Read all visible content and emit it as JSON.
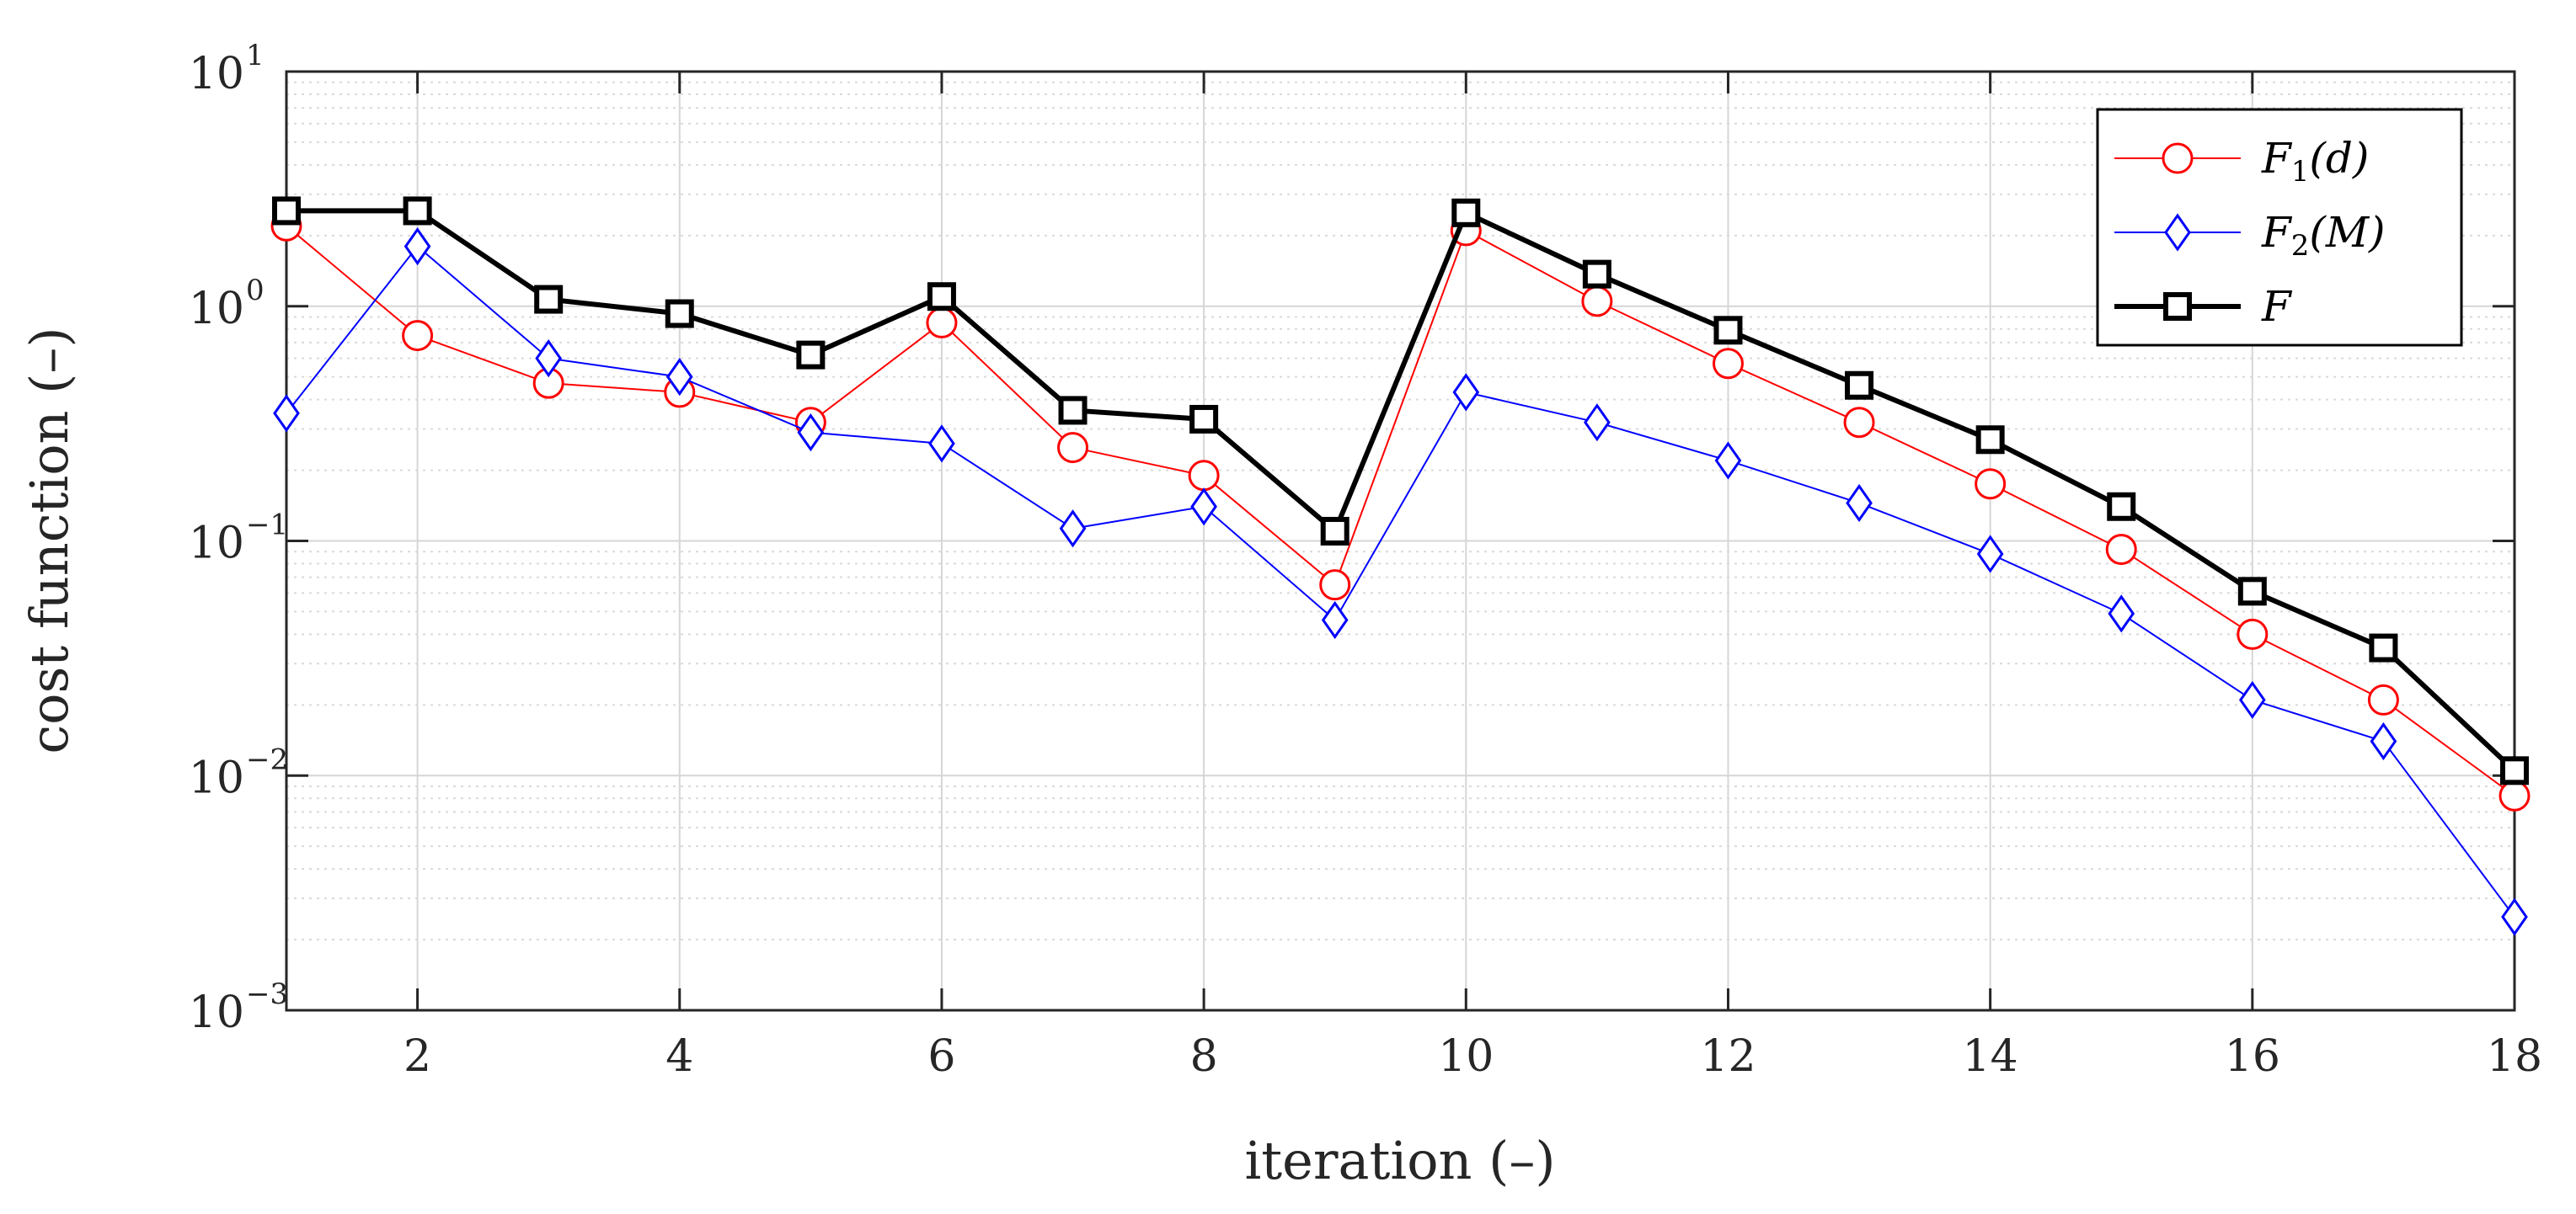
{
  "chart_data": {
    "type": "line",
    "title": "",
    "xlabel": "iteration (–)",
    "ylabel": "cost function (–)",
    "xlim": [
      1,
      18
    ],
    "ylim": [
      0.001,
      10
    ],
    "yscale": "log",
    "grid": true,
    "legend_position": "top-right",
    "x_ticks": [
      2,
      4,
      6,
      8,
      10,
      12,
      14,
      16,
      18
    ],
    "y_ticks": [
      {
        "base": "10",
        "exp": "1",
        "value": 10
      },
      {
        "base": "10",
        "exp": "0",
        "value": 1
      },
      {
        "base": "10",
        "exp": "−1",
        "value": 0.1
      },
      {
        "base": "10",
        "exp": "−2",
        "value": 0.01
      },
      {
        "base": "10",
        "exp": "−3",
        "value": 0.001
      }
    ],
    "x": [
      1,
      2,
      3,
      4,
      5,
      6,
      7,
      8,
      9,
      10,
      11,
      12,
      13,
      14,
      15,
      16,
      17,
      18
    ],
    "series": [
      {
        "name": "F1(d)",
        "legend": {
          "main": "F",
          "sub": "1",
          "arg": "(d)"
        },
        "color": "#ff0000",
        "marker": "circle",
        "values": [
          2.2,
          0.75,
          0.47,
          0.43,
          0.32,
          0.85,
          0.25,
          0.19,
          0.065,
          2.1,
          1.05,
          0.57,
          0.32,
          0.175,
          0.092,
          0.04,
          0.021,
          0.0082
        ]
      },
      {
        "name": "F2(M)",
        "legend": {
          "main": "F",
          "sub": "2",
          "arg": "(M)"
        },
        "color": "#0000ff",
        "marker": "diamond",
        "values": [
          0.35,
          1.8,
          0.6,
          0.5,
          0.29,
          0.26,
          0.113,
          0.14,
          0.046,
          0.43,
          0.32,
          0.22,
          0.145,
          0.088,
          0.049,
          0.021,
          0.014,
          0.0025
        ]
      },
      {
        "name": "F",
        "legend": {
          "main": "F",
          "sub": "",
          "arg": ""
        },
        "color": "#000000",
        "marker": "square",
        "values": [
          2.55,
          2.55,
          1.07,
          0.93,
          0.62,
          1.1,
          0.36,
          0.33,
          0.11,
          2.5,
          1.37,
          0.79,
          0.46,
          0.27,
          0.14,
          0.061,
          0.035,
          0.0105
        ]
      }
    ]
  }
}
